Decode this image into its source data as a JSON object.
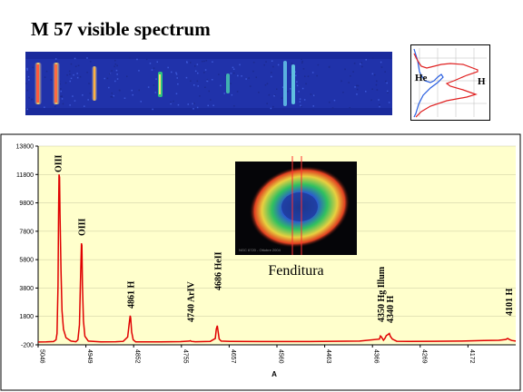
{
  "page": {
    "title": "M 57 visible spectrum"
  },
  "profile_inset": {
    "he_label": "He",
    "h_label": "H",
    "colors": {
      "he": "#2a5fe0",
      "h": "#e02020"
    }
  },
  "nebula_inset": {
    "caption": "Fenditura",
    "image_note": "NGC 6720 - Ottobre 2004"
  },
  "chart_data": {
    "type": "line",
    "title": "",
    "xlabel": "A",
    "ylabel": "",
    "xlim": [
      5046,
      4086
    ],
    "ylim": [
      -200,
      13800
    ],
    "x_ticks": [
      "5046",
      "4949",
      "4852",
      "4755",
      "4657",
      "4560",
      "4463",
      "4366",
      "4269",
      "4172"
    ],
    "y_ticks": [
      "13800",
      "11800",
      "9800",
      "7800",
      "5800",
      "3800",
      "1800",
      "-200"
    ],
    "line_color": "#e00000",
    "plot_background": "#ffffcc",
    "series": [
      {
        "values": [
          [
            5046,
            0
          ],
          [
            5030,
            5
          ],
          [
            5015,
            30
          ],
          [
            5010,
            150
          ],
          [
            5008,
            600
          ],
          [
            5006,
            4000
          ],
          [
            5005,
            9000
          ],
          [
            5004,
            11800
          ],
          [
            5003,
            11600
          ],
          [
            5002,
            9000
          ],
          [
            5000,
            5000
          ],
          [
            4998,
            2200
          ],
          [
            4995,
            900
          ],
          [
            4990,
            300
          ],
          [
            4980,
            60
          ],
          [
            4970,
            20
          ],
          [
            4966,
            150
          ],
          [
            4963,
            1200
          ],
          [
            4961,
            4200
          ],
          [
            4959,
            6950
          ],
          [
            4958,
            6800
          ],
          [
            4957,
            4000
          ],
          [
            4955,
            1500
          ],
          [
            4952,
            400
          ],
          [
            4945,
            60
          ],
          [
            4920,
            10
          ],
          [
            4890,
            15
          ],
          [
            4875,
            40
          ],
          [
            4866,
            350
          ],
          [
            4863,
            1300
          ],
          [
            4861,
            1850
          ],
          [
            4860,
            1700
          ],
          [
            4858,
            700
          ],
          [
            4855,
            150
          ],
          [
            4850,
            10
          ],
          [
            4800,
            10
          ],
          [
            4760,
            25
          ],
          [
            4742,
            60
          ],
          [
            4740,
            90
          ],
          [
            4738,
            40
          ],
          [
            4730,
            20
          ],
          [
            4700,
            40
          ],
          [
            4690,
            250
          ],
          [
            4688,
            900
          ],
          [
            4686,
            1150
          ],
          [
            4684,
            700
          ],
          [
            4682,
            200
          ],
          [
            4678,
            60
          ],
          [
            4660,
            35
          ],
          [
            4600,
            30
          ],
          [
            4500,
            30
          ],
          [
            4400,
            60
          ],
          [
            4360,
            200
          ],
          [
            4358,
            420
          ],
          [
            4356,
            350
          ],
          [
            4352,
            120
          ],
          [
            4349,
            250
          ],
          [
            4346,
            450
          ],
          [
            4343,
            520
          ],
          [
            4340,
            600
          ],
          [
            4338,
            400
          ],
          [
            4334,
            200
          ],
          [
            4325,
            50
          ],
          [
            4300,
            40
          ],
          [
            4250,
            50
          ],
          [
            4200,
            60
          ],
          [
            4150,
            100
          ],
          [
            4120,
            120
          ],
          [
            4106,
            180
          ],
          [
            4102,
            250
          ],
          [
            4099,
            180
          ],
          [
            4094,
            110
          ],
          [
            4086,
            60
          ]
        ]
      }
    ],
    "annotations": [
      {
        "text": "OIII",
        "x": 5007
      },
      {
        "text": "OIII",
        "x": 4959
      },
      {
        "text": "4861 H",
        "x": 4861
      },
      {
        "text": "4740 ArIV",
        "x": 4740
      },
      {
        "text": "4686 HeII",
        "x": 4686
      },
      {
        "text": "4350 Hg Illum",
        "x": 4358
      },
      {
        "text": "4340 H",
        "x": 4340
      },
      {
        "text": "4101 H",
        "x": 4101
      }
    ]
  }
}
